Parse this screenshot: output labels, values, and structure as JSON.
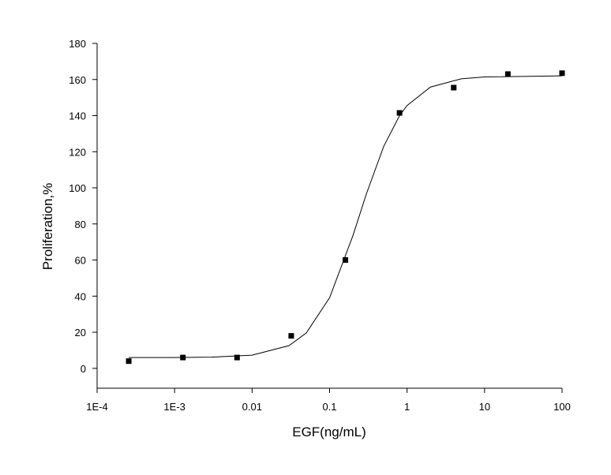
{
  "chart_data": {
    "type": "scatter",
    "xlabel": "EGF(ng/mL)",
    "ylabel": "Proliferation,%",
    "xscale": "log",
    "xlim": [
      0.0001,
      100
    ],
    "ylim": [
      -11,
      180
    ],
    "xticks": [
      {
        "value": 0.0001,
        "label": "1E-4"
      },
      {
        "value": 0.001,
        "label": "1E-3"
      },
      0.01,
      0.1,
      1,
      10,
      100
    ],
    "yticks": [
      0,
      20,
      40,
      60,
      80,
      100,
      120,
      140,
      160,
      180
    ],
    "series": [
      {
        "type": "scatter",
        "color": "#000000",
        "x": [
          0.000256,
          0.00128,
          0.0064,
          0.032,
          0.16,
          0.8,
          4,
          20,
          100
        ],
        "values": [
          4,
          6,
          6,
          18,
          60,
          141.5,
          155.5,
          163,
          163.5
        ]
      },
      {
        "type": "line",
        "color": "#000000",
        "x": [
          0.000256,
          0.001,
          0.003,
          0.01,
          0.03,
          0.05,
          0.1,
          0.2,
          0.3,
          0.5,
          0.8,
          1,
          2,
          5,
          10,
          100
        ],
        "values": [
          6.0,
          6.0,
          6.2,
          7.3,
          12.6,
          19.6,
          39.1,
          73.5,
          96.9,
          123.0,
          140.0,
          145.6,
          155.8,
          160.4,
          161.4,
          162.0
        ]
      }
    ]
  }
}
